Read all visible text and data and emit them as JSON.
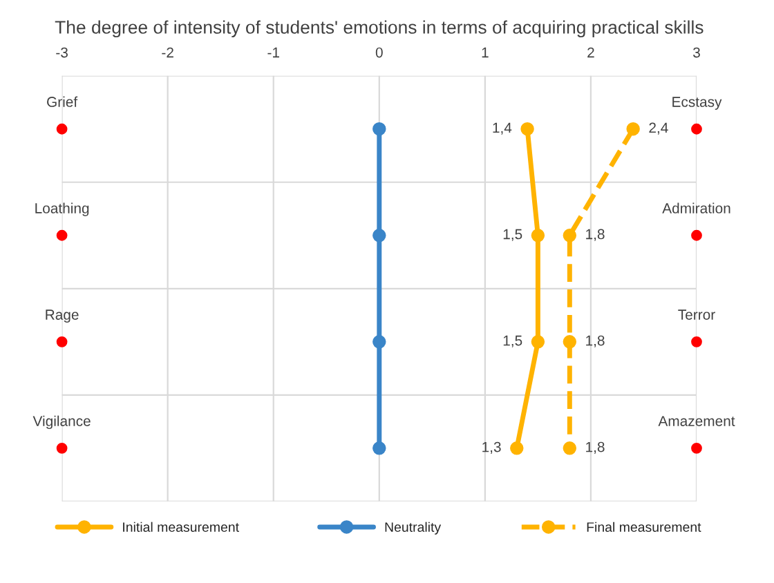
{
  "chart_data": {
    "type": "line",
    "orientation": "horizontal",
    "title": "The degree of intensity of students' emotions in terms of acquiring practical skills",
    "categories": [
      "Grief",
      "Loathing",
      "Rage",
      "Vigilance"
    ],
    "xlim": [
      -3,
      3
    ],
    "xticks": [
      -3,
      -2,
      -1,
      0,
      1,
      2,
      3
    ],
    "series": [
      {
        "name": "Initial measurement",
        "color": "#ffb300",
        "values": [
          1.4,
          1.5,
          1.5,
          1.3
        ],
        "value_labels": [
          "1,4",
          "1,5",
          "1,5",
          "1,3"
        ],
        "line_style": "solid",
        "marker": "circle"
      },
      {
        "name": "Neutrality",
        "color": "#3a85c8",
        "values": [
          0,
          0,
          0,
          0
        ],
        "line_style": "solid",
        "marker": "circle"
      },
      {
        "name": "Final measurement",
        "color": "#ffb300",
        "values": [
          2.4,
          1.8,
          1.8,
          1.8
        ],
        "value_labels": [
          "2,4",
          "1,8",
          "1,8",
          "1,8"
        ],
        "line_style": "dashed",
        "marker": "circle"
      },
      {
        "type": "scatter",
        "color": "#ff0000",
        "values": [
          -3,
          -3,
          -3,
          -3
        ],
        "marker": "circle"
      },
      {
        "type": "scatter",
        "color": "#ff0000",
        "values": [
          3,
          3,
          3,
          3
        ],
        "marker": "circle"
      }
    ],
    "annotations": [
      "Ecstasy",
      "Admiration",
      "Terror",
      "Amazement"
    ],
    "grid": true,
    "legend": "bottom"
  }
}
